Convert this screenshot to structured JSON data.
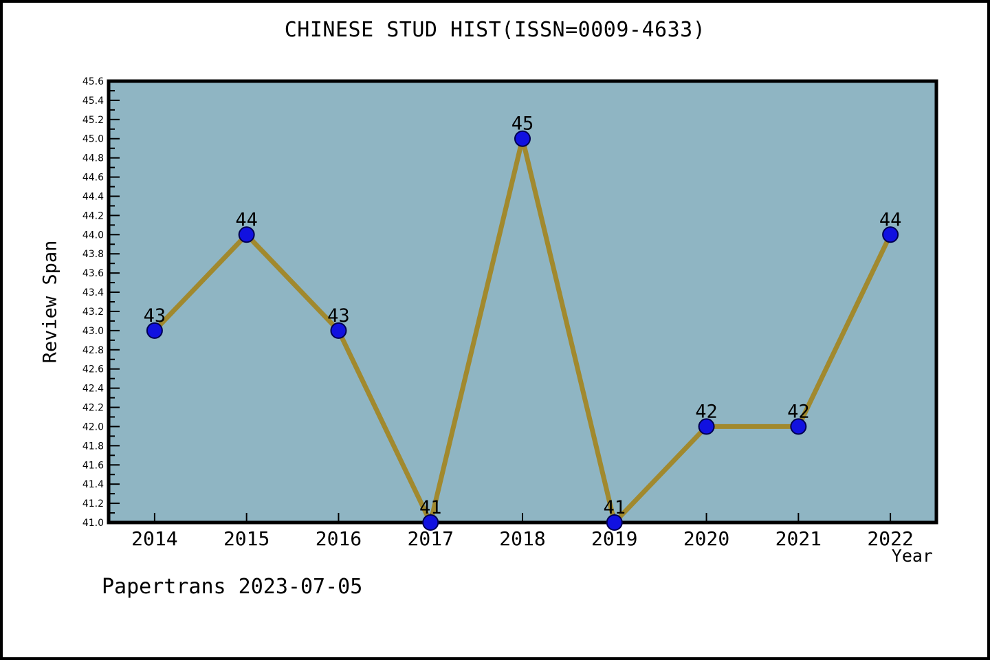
{
  "page": {
    "footer": "Papertrans 2023-07-05"
  },
  "chart_data": {
    "type": "line",
    "title": "CHINESE STUD HIST(ISSN=0009-4633)",
    "xlabel": "Year",
    "ylabel": "Review Span",
    "categories": [
      "2014",
      "2015",
      "2016",
      "2017",
      "2018",
      "2019",
      "2020",
      "2021",
      "2022"
    ],
    "values": [
      43,
      44,
      43,
      41,
      45,
      41,
      42,
      42,
      44
    ],
    "point_labels": [
      "43",
      "44",
      "43",
      "41",
      "45",
      "41",
      "42",
      "42",
      "44"
    ],
    "ylim": [
      41.0,
      45.6
    ],
    "ytick_major_step": 0.2,
    "ytick_minor_step": 0.1,
    "grid": false,
    "legend": "none",
    "colors": {
      "plot_bg": "#8FB5C3",
      "line": "#A1892E",
      "marker_fill": "#1111E0",
      "marker_edge": "#000050",
      "axis": "#000000",
      "text": "#000000"
    }
  }
}
